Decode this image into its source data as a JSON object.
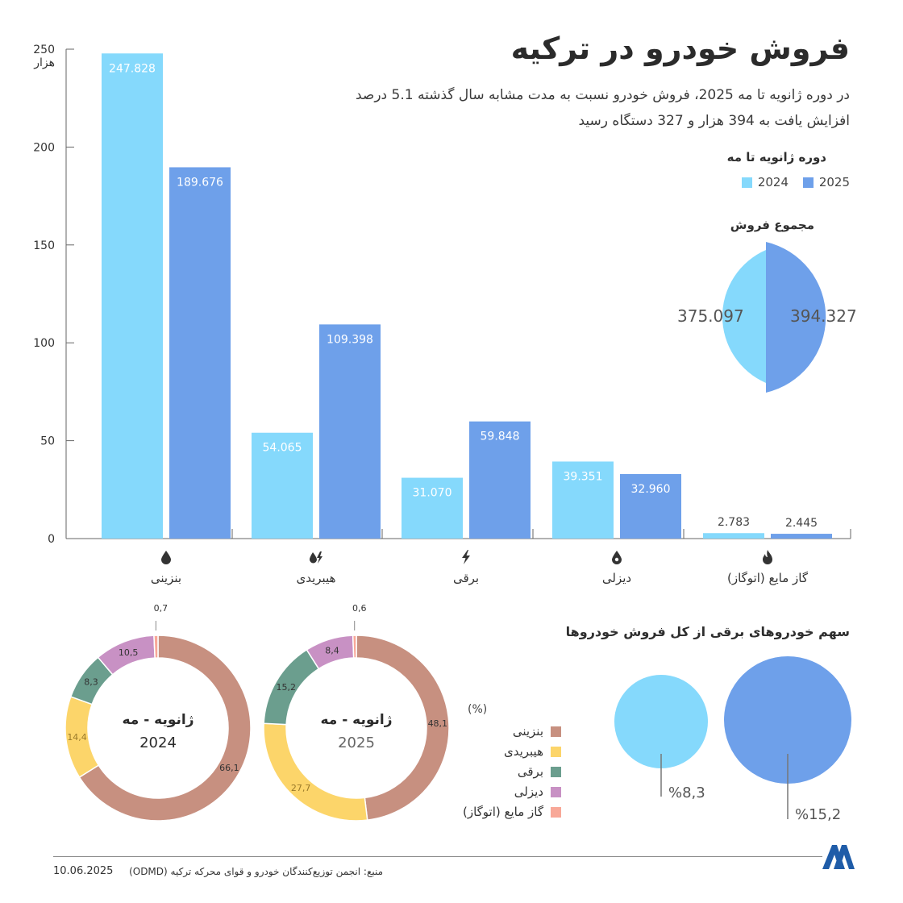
{
  "title": "فروش خودرو در ترکیه",
  "subtitle_line1": "در دوره ژانویه تا مه 2025، فروش خودرو نسبت به مدت مشابه سال گذشته 5.1 درصد",
  "subtitle_line2": "افزایش یافت به 394 هزار و 327 دستگاه رسید",
  "period_label": "دوره ژانویه تا مه",
  "total_label": "مجموع فروش",
  "colors": {
    "y2024": "#85d9fc",
    "y2025": "#6ea0ea",
    "axis": "#666666"
  },
  "chart_data": [
    {
      "type": "bar",
      "categories": [
        "بنزینی",
        "هیبریدی",
        "برقی",
        "دیزلی",
        "گاز مایع (اتوگاز)"
      ],
      "category_icons": [
        "drop-icon",
        "hybrid-icon",
        "lightning-icon",
        "diesel-drop-icon",
        "flame-icon"
      ],
      "series": [
        {
          "name": "2024",
          "values": [
            247.828,
            54.065,
            31.07,
            39.351,
            2.783
          ],
          "labels": [
            "247.828",
            "54.065",
            "31.070",
            "39.351",
            "2.783"
          ]
        },
        {
          "name": "2025",
          "values": [
            189.676,
            109.398,
            59.848,
            32.96,
            2.445
          ],
          "labels": [
            "189.676",
            "109.398",
            "59.848",
            "32.960",
            "2.445"
          ]
        }
      ],
      "y_ticks": [
        "0",
        "50",
        "100",
        "150",
        "200",
        "250"
      ],
      "ylabel": "هزار",
      "ylim": [
        0,
        250
      ],
      "legend": "top-right"
    },
    {
      "type": "pie",
      "title": "مجموع فروش",
      "series": [
        {
          "name": "2024",
          "value": 375.097,
          "label": "375.097"
        },
        {
          "name": "2025",
          "value": 394.327,
          "label": "394.327"
        }
      ]
    },
    {
      "type": "pie",
      "unit_label": "(%)",
      "categories": [
        "بنزینی",
        "هیبریدی",
        "برقی",
        "دیزلی",
        "گاز مایع (اتوگاز)"
      ],
      "category_colors": [
        "#c79080",
        "#fcd56a",
        "#6b9e8e",
        "#c891c4",
        "#f8a898"
      ],
      "charts": [
        {
          "center_title": "ژانویه - مه",
          "center_year": "2024",
          "values": [
            66.1,
            14.4,
            8.3,
            10.5,
            0.7
          ],
          "labels": [
            "66,1",
            "14,4",
            "8,3",
            "10,5",
            "0,7"
          ]
        },
        {
          "center_title": "ژانویه - مه",
          "center_year": "2025",
          "values": [
            48.1,
            27.7,
            15.2,
            8.4,
            0.6
          ],
          "labels": [
            "48,1",
            "27,7",
            "15,2",
            "8,4",
            "0,6"
          ]
        }
      ]
    },
    {
      "type": "bubble",
      "title": "سهم خودروهای برقی از کل فروش خودروها",
      "series": [
        {
          "name": "2024",
          "value": 8.3,
          "label": "%8,3"
        },
        {
          "name": "2025",
          "value": 15.2,
          "label": "%15,2"
        }
      ]
    }
  ],
  "footer": {
    "date": "10.06.2025",
    "source": "منبع: انجمن توزیع‌کنندگان خودرو و قوای محرکه ترکیه (ODMD)",
    "logo_icon": "aa-logo-icon"
  }
}
